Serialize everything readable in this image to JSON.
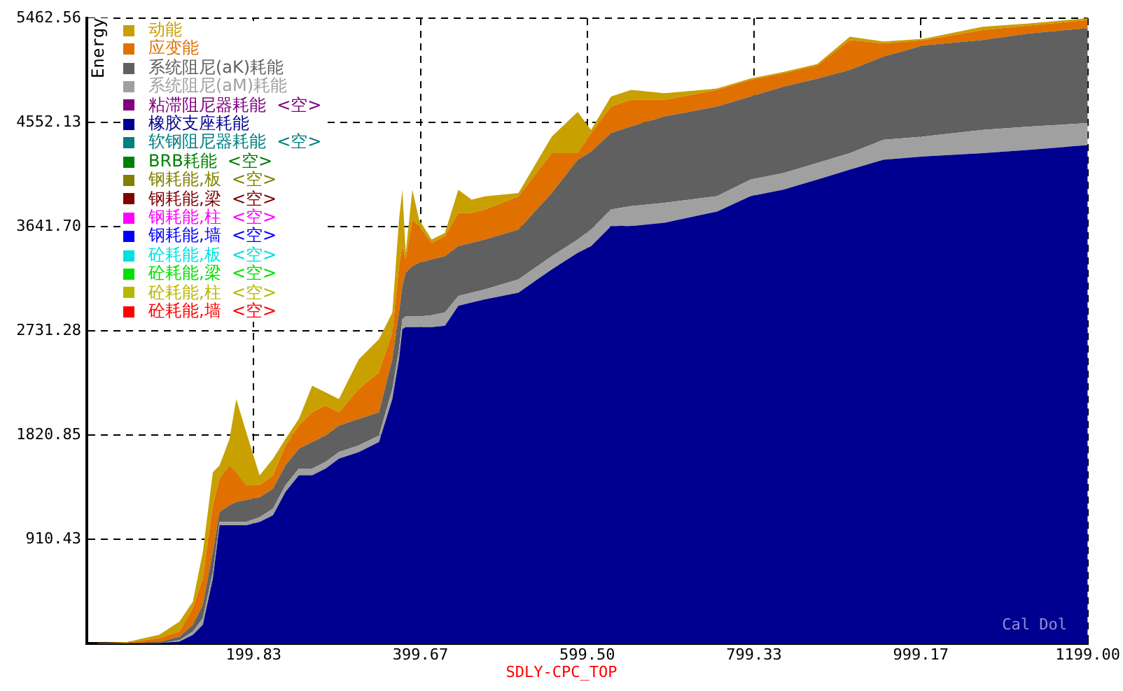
{
  "chart_data": {
    "type": "area",
    "stacked": true,
    "ylabel": "Energy",
    "xlabel": "SDLY-CPC_TOP",
    "annotations": [
      "Cal Dol"
    ],
    "x": [
      0,
      48,
      87,
      111,
      127,
      139,
      151,
      159,
      171,
      179,
      191,
      207,
      223,
      238,
      254,
      270,
      286,
      302,
      326,
      350,
      366,
      374,
      378,
      382,
      390,
      398,
      413,
      429,
      445,
      461,
      477,
      517,
      557,
      588,
      604,
      628,
      652,
      692,
      755,
      795,
      835,
      875,
      914,
      954,
      1002,
      1073,
      1129,
      1199
    ],
    "xlim": [
      0,
      1199
    ],
    "ylim": [
      0,
      5462.56
    ],
    "xticks": [
      199.83,
      399.67,
      {
        "value": 599.5,
        "label": "599.50"
      },
      799.33,
      999.17,
      {
        "value": 1199,
        "label": "1199.00"
      }
    ],
    "yticks": [
      910.43,
      1820.85,
      2731.28,
      {
        "value": 3641.7,
        "label": "3641.70"
      },
      4552.13,
      5462.56
    ],
    "grid": true,
    "legend": "top left",
    "series": [
      {
        "name": "砼耗能,墙  <空>",
        "color": "#ff0000",
        "values": [
          null,
          null,
          null,
          null,
          null,
          null,
          null,
          null,
          null,
          null,
          null,
          null,
          null,
          null,
          null,
          null,
          null,
          null,
          null,
          null,
          null,
          null,
          null,
          null,
          null,
          null,
          null,
          null,
          null,
          null,
          null,
          null,
          null,
          null,
          null,
          null,
          null,
          null,
          null,
          null,
          null,
          null,
          null,
          null,
          null,
          null,
          null,
          null
        ]
      },
      {
        "name": "砼耗能,柱  <空>",
        "color": "#b8b800",
        "values": [
          null,
          null,
          null,
          null,
          null,
          null,
          null,
          null,
          null,
          null,
          null,
          null,
          null,
          null,
          null,
          null,
          null,
          null,
          null,
          null,
          null,
          null,
          null,
          null,
          null,
          null,
          null,
          null,
          null,
          null,
          null,
          null,
          null,
          null,
          null,
          null,
          null,
          null,
          null,
          null,
          null,
          null,
          null,
          null,
          null,
          null,
          null,
          null
        ]
      },
      {
        "name": "砼耗能,梁  <空>",
        "color": "#00e000",
        "values": [
          null,
          null,
          null,
          null,
          null,
          null,
          null,
          null,
          null,
          null,
          null,
          null,
          null,
          null,
          null,
          null,
          null,
          null,
          null,
          null,
          null,
          null,
          null,
          null,
          null,
          null,
          null,
          null,
          null,
          null,
          null,
          null,
          null,
          null,
          null,
          null,
          null,
          null,
          null,
          null,
          null,
          null,
          null,
          null,
          null,
          null,
          null,
          null
        ]
      },
      {
        "name": "砼耗能,板  <空>",
        "color": "#00e0e0",
        "values": [
          null,
          null,
          null,
          null,
          null,
          null,
          null,
          null,
          null,
          null,
          null,
          null,
          null,
          null,
          null,
          null,
          null,
          null,
          null,
          null,
          null,
          null,
          null,
          null,
          null,
          null,
          null,
          null,
          null,
          null,
          null,
          null,
          null,
          null,
          null,
          null,
          null,
          null,
          null,
          null,
          null,
          null,
          null,
          null,
          null,
          null,
          null,
          null
        ]
      },
      {
        "name": "钢耗能,墙  <空>",
        "color": "#0000ff",
        "values": [
          null,
          null,
          null,
          null,
          null,
          null,
          null,
          null,
          null,
          null,
          null,
          null,
          null,
          null,
          null,
          null,
          null,
          null,
          null,
          null,
          null,
          null,
          null,
          null,
          null,
          null,
          null,
          null,
          null,
          null,
          null,
          null,
          null,
          null,
          null,
          null,
          null,
          null,
          null,
          null,
          null,
          null,
          null,
          null,
          null,
          null,
          null,
          null
        ]
      },
      {
        "name": "钢耗能,柱  <空>",
        "color": "#ff00ff",
        "values": [
          null,
          null,
          null,
          null,
          null,
          null,
          null,
          null,
          null,
          null,
          null,
          null,
          null,
          null,
          null,
          null,
          null,
          null,
          null,
          null,
          null,
          null,
          null,
          null,
          null,
          null,
          null,
          null,
          null,
          null,
          null,
          null,
          null,
          null,
          null,
          null,
          null,
          null,
          null,
          null,
          null,
          null,
          null,
          null,
          null,
          null,
          null,
          null
        ]
      },
      {
        "name": "钢耗能,梁  <空>",
        "color": "#800000",
        "values": [
          null,
          null,
          null,
          null,
          null,
          null,
          null,
          null,
          null,
          null,
          null,
          null,
          null,
          null,
          null,
          null,
          null,
          null,
          null,
          null,
          null,
          null,
          null,
          null,
          null,
          null,
          null,
          null,
          null,
          null,
          null,
          null,
          null,
          null,
          null,
          null,
          null,
          null,
          null,
          null,
          null,
          null,
          null,
          null,
          null,
          null,
          null,
          null
        ]
      },
      {
        "name": "钢耗能,板  <空>",
        "color": "#808000",
        "values": [
          null,
          null,
          null,
          null,
          null,
          null,
          null,
          null,
          null,
          null,
          null,
          null,
          null,
          null,
          null,
          null,
          null,
          null,
          null,
          null,
          null,
          null,
          null,
          null,
          null,
          null,
          null,
          null,
          null,
          null,
          null,
          null,
          null,
          null,
          null,
          null,
          null,
          null,
          null,
          null,
          null,
          null,
          null,
          null,
          null,
          null,
          null,
          null
        ]
      },
      {
        "name": "BRB耗能  <空>",
        "color": "#008000",
        "values": [
          null,
          null,
          null,
          null,
          null,
          null,
          null,
          null,
          null,
          null,
          null,
          null,
          null,
          null,
          null,
          null,
          null,
          null,
          null,
          null,
          null,
          null,
          null,
          null,
          null,
          null,
          null,
          null,
          null,
          null,
          null,
          null,
          null,
          null,
          null,
          null,
          null,
          null,
          null,
          null,
          null,
          null,
          null,
          null,
          null,
          null,
          null,
          null
        ]
      },
      {
        "name": "软钢阻尼器耗能  <空>",
        "color": "#008080",
        "values": [
          null,
          null,
          null,
          null,
          null,
          null,
          null,
          null,
          null,
          null,
          null,
          null,
          null,
          null,
          null,
          null,
          null,
          null,
          null,
          null,
          null,
          null,
          null,
          null,
          null,
          null,
          null,
          null,
          null,
          null,
          null,
          null,
          null,
          null,
          null,
          null,
          null,
          null,
          null,
          null,
          null,
          null,
          null,
          null,
          null,
          null,
          null,
          null
        ]
      },
      {
        "name": "橡胶支座耗能",
        "color": "#000090",
        "values": [
          0,
          0,
          0,
          17,
          75,
          163,
          569,
          1033,
          1033,
          1033,
          1033,
          1062,
          1120,
          1324,
          1469,
          1469,
          1527,
          1614,
          1672,
          1759,
          2136,
          2485,
          2746,
          2763,
          2763,
          2763,
          2763,
          2775,
          2949,
          2978,
          3007,
          3065,
          3268,
          3413,
          3471,
          3646,
          3646,
          3675,
          3773,
          3907,
          3965,
          4052,
          4139,
          4226,
          4255,
          4284,
          4313,
          4354
        ]
      },
      {
        "name": "粘滞阻尼器耗能  <空>",
        "color": "#800080",
        "values": [
          null,
          null,
          null,
          null,
          null,
          null,
          null,
          null,
          null,
          null,
          null,
          null,
          null,
          null,
          null,
          null,
          null,
          null,
          null,
          null,
          null,
          null,
          null,
          null,
          null,
          null,
          null,
          null,
          null,
          null,
          null,
          null,
          null,
          null,
          null,
          null,
          null,
          null,
          null,
          null,
          null,
          null,
          null,
          null,
          null,
          null,
          null,
          null
        ]
      },
      {
        "name": "系统阻尼(aM)耗能",
        "color": "#a0a0a0",
        "values": [
          0,
          0,
          0,
          12,
          29,
          58,
          58,
          29,
          29,
          29,
          29,
          41,
          58,
          58,
          58,
          58,
          58,
          58,
          58,
          58,
          87,
          87,
          87,
          93,
          93,
          93,
          104,
          116,
          87,
          87,
          87,
          116,
          116,
          116,
          145,
          145,
          174,
          174,
          134,
          145,
          145,
          145,
          145,
          174,
          174,
          203,
          203,
          192
        ]
      },
      {
        "name": "系统阻尼(aK)耗能",
        "color": "#606060",
        "values": [
          0,
          0,
          12,
          29,
          58,
          116,
          174,
          87,
          145,
          174,
          192,
          174,
          174,
          174,
          174,
          232,
          232,
          232,
          232,
          203,
          261,
          319,
          290,
          383,
          441,
          470,
          488,
          493,
          435,
          435,
          435,
          435,
          551,
          697,
          679,
          668,
          697,
          755,
          784,
          726,
          755,
          737,
          726,
          726,
          795,
          784,
          813,
          830
        ]
      },
      {
        "name": "应变能",
        "color": "#e07000",
        "values": [
          0,
          6,
          35,
          46,
          145,
          232,
          406,
          290,
          348,
          261,
          128,
          104,
          116,
          174,
          203,
          261,
          261,
          116,
          261,
          348,
          232,
          406,
          348,
          116,
          406,
          319,
          145,
          174,
          290,
          261,
          261,
          290,
          348,
          58,
          163,
          232,
          232,
          145,
          145,
          145,
          116,
          116,
          261,
          116,
          46,
          87,
          70,
          70
        ]
      },
      {
        "name": "动能",
        "color": "#c8a000",
        "values": [
          0,
          6,
          29,
          87,
          58,
          232,
          290,
          116,
          232,
          639,
          464,
          87,
          145,
          58,
          58,
          232,
          116,
          116,
          261,
          290,
          174,
          406,
          493,
          58,
          261,
          58,
          29,
          29,
          203,
          116,
          116,
          29,
          145,
          360,
          29,
          87,
          87,
          58,
          12,
          12,
          12,
          12,
          29,
          17,
          12,
          29,
          17,
          17
        ]
      }
    ]
  }
}
